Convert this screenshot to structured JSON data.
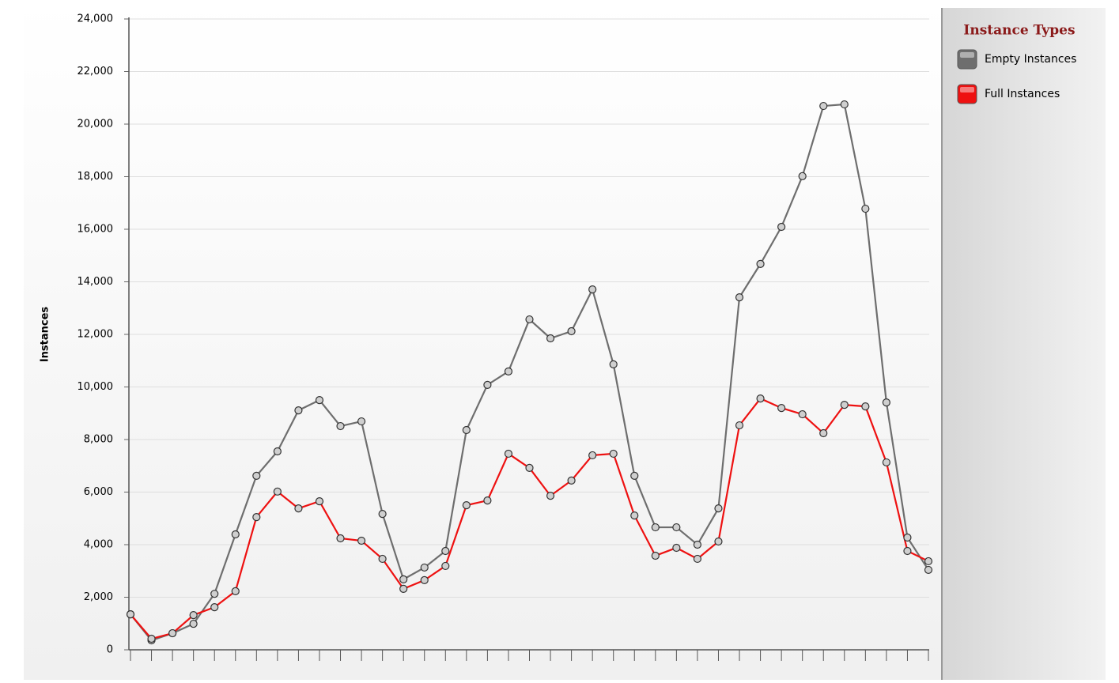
{
  "chart_data": {
    "type": "line",
    "y_label": "Instances",
    "categories": [
      null,
      null,
      null,
      null,
      null,
      null,
      null,
      null,
      null,
      null,
      null,
      null,
      null,
      null,
      null,
      null,
      null,
      null,
      null,
      null,
      null,
      null,
      null,
      null,
      null,
      null,
      null,
      null,
      null,
      null,
      null,
      null,
      null,
      null,
      null,
      null,
      null,
      null,
      null
    ],
    "series": [
      {
        "name": "Empty Instances",
        "color": "#6e6e6e",
        "values": [
          1350,
          360,
          630,
          990,
          2130,
          4390,
          6620,
          7550,
          9110,
          9500,
          8510,
          8690,
          5170,
          2680,
          3130,
          3760,
          8360,
          10080,
          10590,
          12570,
          11850,
          12120,
          13710,
          10860,
          6620,
          4660,
          4660,
          4000,
          5380,
          13410,
          14680,
          16090,
          18020,
          20690,
          20750,
          16780,
          9410,
          4270,
          3040
        ]
      },
      {
        "name": "Full Instances",
        "color": "#ee1111",
        "values": [
          1350,
          420,
          630,
          1320,
          1620,
          2230,
          5050,
          6020,
          5380,
          5650,
          4240,
          4150,
          3460,
          2320,
          2650,
          3190,
          5500,
          5680,
          7460,
          6920,
          5860,
          6440,
          7400,
          7460,
          5110,
          3580,
          3880,
          3460,
          4120,
          8540,
          9560,
          9200,
          8960,
          8240,
          9320,
          9260,
          7130,
          3760,
          3370
        ]
      }
    ],
    "ylim": [
      0,
      24000
    ],
    "yticks": [
      0,
      {
        "value": 2000,
        "label": "2,000"
      },
      {
        "value": 4000,
        "label": "4,000"
      },
      {
        "value": 6000,
        "label": "6,000"
      },
      {
        "value": 8000,
        "label": "8,000"
      },
      {
        "value": 10000,
        "label": "10,000"
      },
      {
        "value": 12000,
        "label": "12,000"
      },
      {
        "value": 14000,
        "label": "14,000"
      },
      {
        "value": 16000,
        "label": "16,000"
      },
      {
        "value": 18000,
        "label": "18,000"
      },
      {
        "value": 20000,
        "label": "20,000"
      },
      {
        "value": 22000,
        "label": "22,000"
      },
      {
        "value": 24000,
        "label": "24,000"
      }
    ],
    "grid": true,
    "legend_title": "Instance Types",
    "legend": "right"
  }
}
